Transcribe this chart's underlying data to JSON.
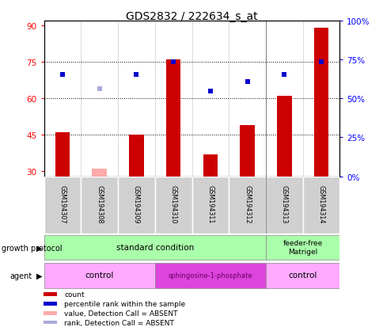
{
  "title": "GDS2832 / 222634_s_at",
  "samples": [
    "GSM194307",
    "GSM194308",
    "GSM194309",
    "GSM194310",
    "GSM194311",
    "GSM194312",
    "GSM194313",
    "GSM194314"
  ],
  "bar_values": [
    46,
    31,
    45,
    76,
    37,
    49,
    61,
    89
  ],
  "bar_absent": [
    false,
    true,
    false,
    false,
    false,
    false,
    false,
    false
  ],
  "rank_values": [
    70,
    64,
    70,
    75,
    63,
    67,
    70,
    75
  ],
  "rank_absent": [
    false,
    true,
    false,
    false,
    false,
    false,
    false,
    false
  ],
  "ylim_left": [
    28,
    92
  ],
  "ylim_right": [
    0,
    100
  ],
  "yticks_left": [
    30,
    45,
    60,
    75,
    90
  ],
  "yticks_right": [
    0,
    25,
    50,
    75,
    100
  ],
  "ytick_labels_right": [
    "0%",
    "25%",
    "50%",
    "75%",
    "100%"
  ],
  "hlines": [
    45,
    60,
    75
  ],
  "bar_color": "#cc0000",
  "bar_absent_color": "#ffaaaa",
  "rank_color": "#0000cc",
  "rank_absent_color": "#aaaadd",
  "title_fontsize": 10,
  "tick_fontsize": 7.5,
  "bar_width": 0.4,
  "marker_size": 5,
  "growth_protocol_label": "growth protocol",
  "growth_protocol_standard_label": "standard condition",
  "growth_protocol_feeder_label": "feeder-free\nMatrigel",
  "growth_protocol_color": "#aaffaa",
  "agent_label": "agent",
  "agent_control_label": "control",
  "agent_sphingo_label": "sphingosine-1-phosphate",
  "agent_control_color": "#ffaaff",
  "agent_sphingo_color": "#dd44dd",
  "agent_sphingo_text_color": "#660066",
  "sample_bg_color": "#d0d0d0",
  "legend_items": [
    {
      "label": "count",
      "color": "#cc0000"
    },
    {
      "label": "percentile rank within the sample",
      "color": "#0000cc"
    },
    {
      "label": "value, Detection Call = ABSENT",
      "color": "#ffaaaa"
    },
    {
      "label": "rank, Detection Call = ABSENT",
      "color": "#aaaadd"
    }
  ]
}
